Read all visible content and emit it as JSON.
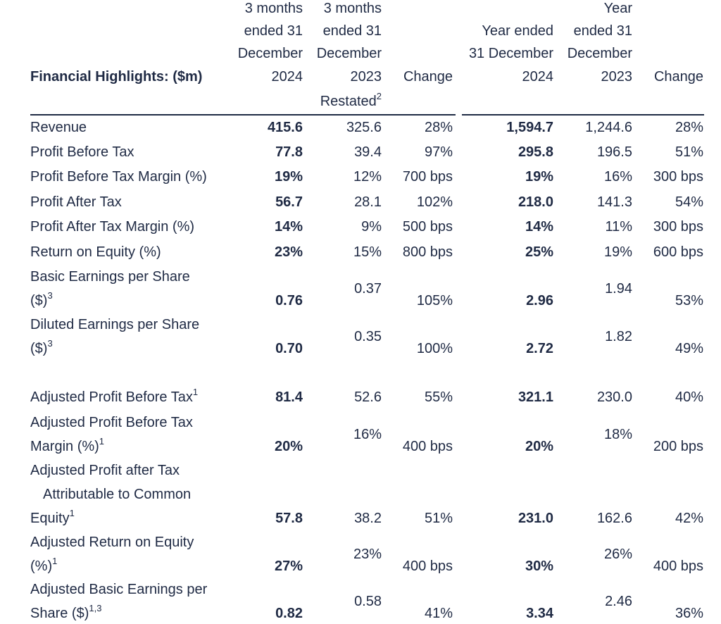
{
  "table": {
    "title": "Financial Highlights: ($m)",
    "columns": [
      {
        "lines": [
          "3 months",
          "ended 31",
          "December",
          "2024"
        ]
      },
      {
        "lines": [
          "3 months",
          "ended 31",
          "December",
          "2023",
          "Restated"
        ],
        "sup": "2"
      },
      {
        "lines": [
          "Change"
        ]
      },
      {
        "lines": [
          "Year ended",
          "31 December",
          "2024"
        ]
      },
      {
        "lines": [
          "Year",
          "ended 31",
          "December",
          "2023"
        ]
      },
      {
        "lines": [
          "Change"
        ]
      }
    ],
    "rows": [
      {
        "label": [
          "Revenue"
        ],
        "values": [
          "415.6",
          "325.6",
          "28%",
          "1,594.7",
          "1,244.6",
          "28%"
        ]
      },
      {
        "label": [
          "Profit Before Tax"
        ],
        "values": [
          "77.8",
          "39.4",
          "97%",
          "295.8",
          "196.5",
          "51%"
        ]
      },
      {
        "label": [
          "Profit Before Tax Margin (%)"
        ],
        "values": [
          "19%",
          "12%",
          "700 bps",
          "19%",
          "16%",
          "300 bps"
        ]
      },
      {
        "label": [
          "Profit After Tax"
        ],
        "values": [
          "56.7",
          "28.1",
          "102%",
          "218.0",
          "141.3",
          "54%"
        ]
      },
      {
        "label": [
          "Profit After Tax Margin (%)"
        ],
        "values": [
          "14%",
          "9%",
          "500 bps",
          "14%",
          "11%",
          "300 bps"
        ]
      },
      {
        "label": [
          "Return on Equity (%)"
        ],
        "values": [
          "23%",
          "15%",
          "800 bps",
          "25%",
          "19%",
          "600 bps"
        ]
      },
      {
        "label": [
          "Basic Earnings per Share",
          "($)"
        ],
        "sup": "3",
        "values": [
          "0.76",
          "0.37",
          "105%",
          "2.96",
          "1.94",
          "53%"
        ]
      },
      {
        "label": [
          "Diluted Earnings per Share",
          "($)"
        ],
        "sup": "3",
        "values": [
          "0.70",
          "0.35",
          "100%",
          "2.72",
          "1.82",
          "49%"
        ]
      },
      {
        "label": [
          "Adjusted Profit Before Tax"
        ],
        "sup": "1",
        "values": [
          "81.4",
          "52.6",
          "55%",
          "321.1",
          "230.0",
          "40%"
        ]
      },
      {
        "label": [
          "Adjusted Profit Before Tax",
          "Margin (%)"
        ],
        "sup": "1",
        "values": [
          "20%",
          "16%",
          "400 bps",
          "20%",
          "18%",
          "200 bps"
        ]
      },
      {
        "label": [
          "Adjusted Profit after Tax",
          "Attributable to Common",
          "Equity"
        ],
        "sup": "1",
        "values": [
          "57.8",
          "38.2",
          "51%",
          "231.0",
          "162.6",
          "42%"
        ]
      },
      {
        "label": [
          "Adjusted Return on Equity",
          "(%)"
        ],
        "sup": "1",
        "values": [
          "27%",
          "23%",
          "400 bps",
          "30%",
          "26%",
          "400 bps"
        ]
      },
      {
        "label": [
          "Adjusted Basic Earnings per",
          "Share ($)"
        ],
        "sup": "1,3",
        "values": [
          "0.82",
          "0.58",
          "41%",
          "3.34",
          "2.46",
          "36%"
        ]
      }
    ]
  }
}
